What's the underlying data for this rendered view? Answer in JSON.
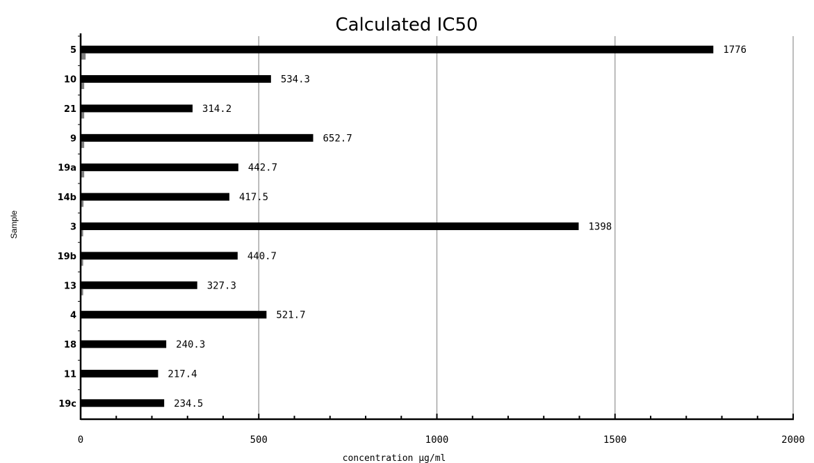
{
  "chart_data": {
    "type": "bar",
    "orientation": "horizontal",
    "title": "Calculated IC50",
    "xlabel": "concentration µg/ml",
    "ylabel": "Sample",
    "categories": [
      "5",
      "10",
      "21",
      "9",
      "19a",
      "14b",
      "3",
      "19b",
      "13",
      "4",
      "18",
      "11",
      "19c"
    ],
    "series": [
      {
        "values": [
          1776,
          534.3,
          314.2,
          652.7,
          442.7,
          417.5,
          1398,
          440.7,
          327.3,
          521.7,
          240.3,
          217.4,
          234.5
        ],
        "labels": [
          "1776",
          "534.3",
          "314.2",
          "652.7",
          "442.7",
          "417.5",
          "1398",
          "440.7",
          "327.3",
          "521.7",
          "240.3",
          "217.4",
          "234.5"
        ],
        "color": "#000000"
      },
      {
        "values": [
          14,
          10,
          10,
          10,
          10,
          8,
          7,
          7,
          7,
          2,
          2,
          2,
          2
        ],
        "color": "#808080"
      }
    ],
    "xlim": [
      0,
      2000
    ],
    "xticks": [
      0,
      500,
      1000,
      1500,
      2000
    ],
    "xtick_labels": [
      "0",
      "500",
      "1000",
      "1500",
      "2000"
    ],
    "grid": "vertical",
    "legend": "none",
    "colors": {
      "bar": "#000000",
      "secondary_bar": "#808080",
      "grid": "#999999",
      "axis": "#000000"
    }
  }
}
